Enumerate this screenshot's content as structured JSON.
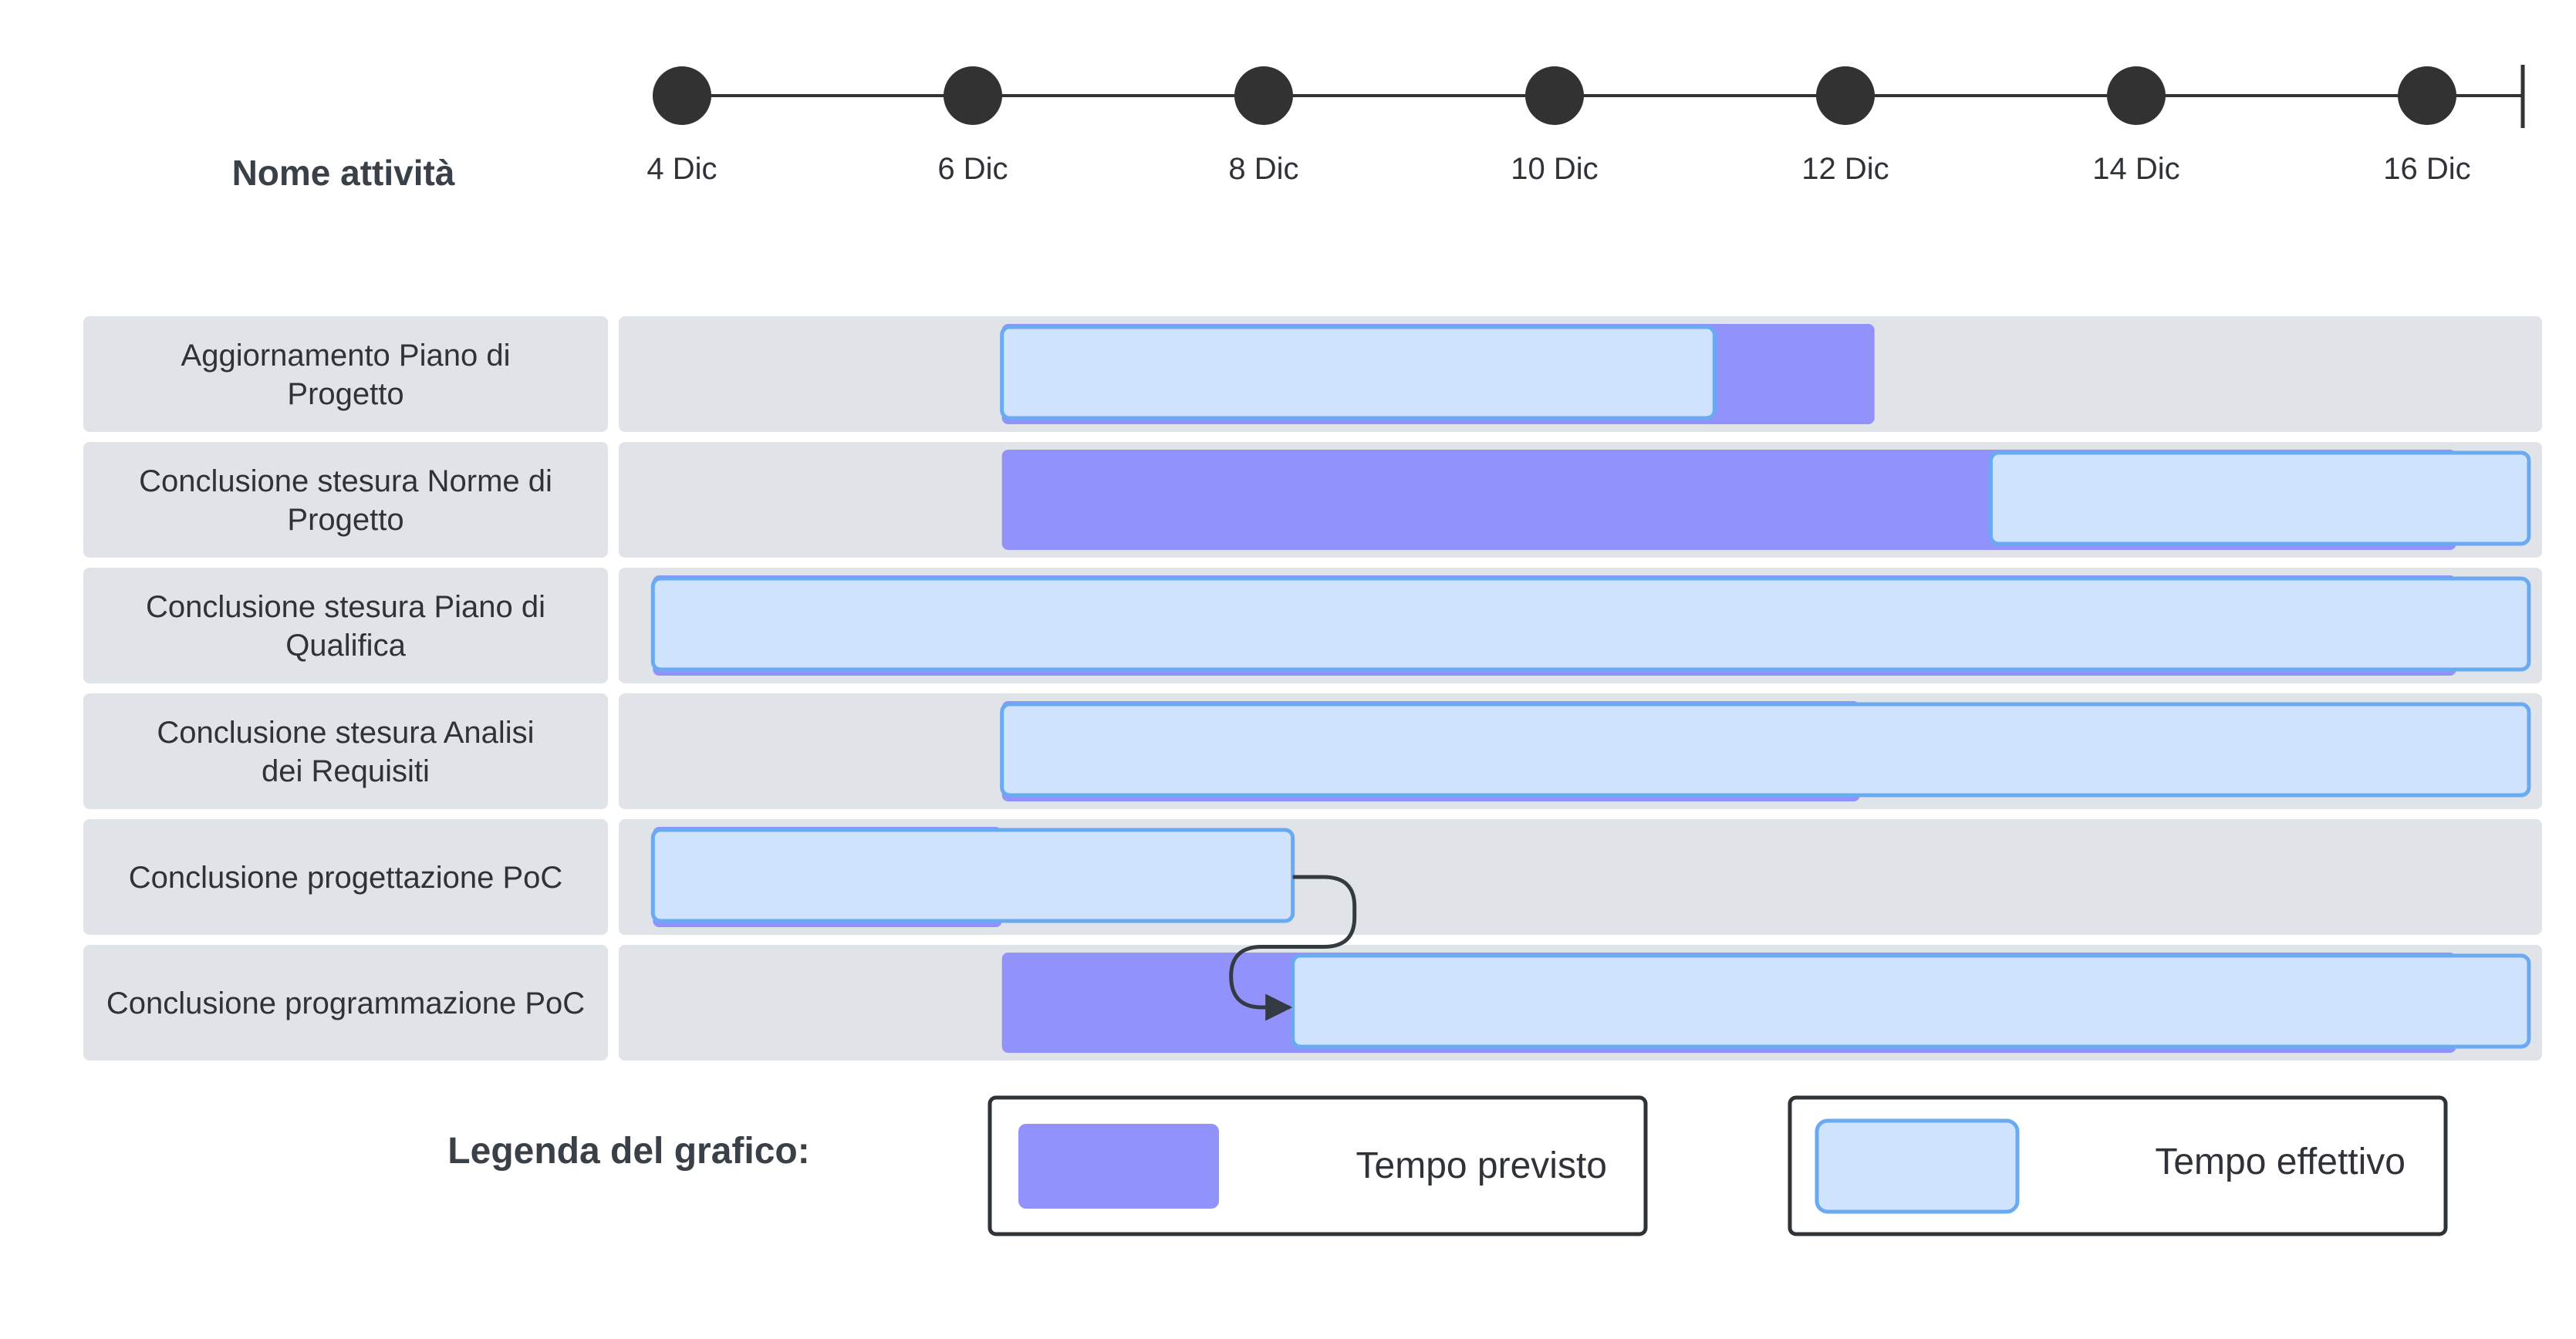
{
  "chart_data": {
    "type": "gantt",
    "task_column_header": "Nome attività",
    "x_axis": {
      "min_day": 4,
      "max_day": 16.5,
      "tick_days": [
        4,
        6,
        8,
        10,
        12,
        14,
        16
      ],
      "tick_labels": [
        "4 Dic",
        "6 Dic",
        "8 Dic",
        "10 Dic",
        "12 Dic",
        "14 Dic",
        "16 Dic"
      ]
    },
    "colors": {
      "planned": "#9292fc",
      "actual_fill": "#cfe4fc",
      "actual_border": "#6aaaf2",
      "row_bg": "#e0e3e7",
      "marker": "#323232"
    },
    "tasks": [
      {
        "label": "Aggiornamento Piano di Progetto",
        "planned": [
          6.2,
          12.2
        ],
        "actual": [
          6.2,
          11.1
        ]
      },
      {
        "label": "Conclusione stesura Norme di Progetto",
        "planned": [
          6.2,
          16.2
        ],
        "actual": [
          13.0,
          16.7
        ]
      },
      {
        "label": "Conclusione stesura Piano di Qualifica",
        "planned": [
          3.8,
          16.2
        ],
        "actual": [
          3.8,
          16.7
        ]
      },
      {
        "label": "Conclusione stesura Analisi dei Requisiti",
        "planned": [
          6.2,
          12.1
        ],
        "actual": [
          6.2,
          16.7
        ]
      },
      {
        "label": "Conclusione progettazione PoC",
        "planned": [
          3.8,
          6.2
        ],
        "actual": [
          3.8,
          8.2
        ]
      },
      {
        "label": "Conclusione programmazione PoC",
        "planned": [
          6.2,
          16.2
        ],
        "actual": [
          8.2,
          16.7
        ]
      }
    ],
    "dependencies": [
      {
        "from": 4,
        "to": 5
      }
    ],
    "legend": {
      "title": "Legenda del grafico:",
      "planned_label": "Tempo previsto",
      "actual_label": "Tempo effettivo"
    }
  }
}
